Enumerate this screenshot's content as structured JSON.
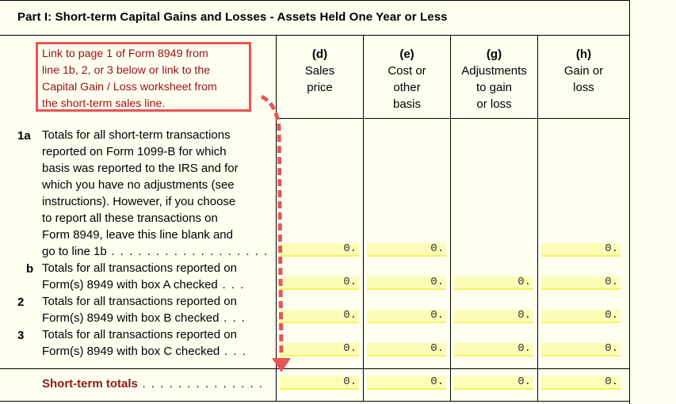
{
  "part": {
    "title": "Part I:  Short-term Capital Gains and Losses - Assets Held One Year or Less"
  },
  "callout": {
    "lines": [
      "Link to page 1 of Form 8949 from",
      "line 1b,  2,  or 3 below or link to the",
      "Capital Gain / Loss worksheet from",
      "the short-term sales line."
    ],
    "text_color": "#9b0f0f",
    "border_color": "#e85454"
  },
  "columns": [
    {
      "letter": "(d)",
      "line1": "Sales",
      "line2": "price",
      "line3": ""
    },
    {
      "letter": "(e)",
      "line1": "Cost or",
      "line2": "other",
      "line3": "basis"
    },
    {
      "letter": "(g)",
      "line1": "Adjustments",
      "line2": "to gain",
      "line3": "or loss"
    },
    {
      "letter": "(h)",
      "line1": "Gain or",
      "line2": "loss",
      "line3": ""
    }
  ],
  "rows": {
    "r1a": {
      "num": "1a",
      "lines": [
        "Totals for all short-term transactions",
        "reported on Form 1099-B for which",
        "basis was reported to the IRS and for",
        "which you have no adjustments  (see",
        "instructions).  However,  if you choose",
        "to report all these transactions on",
        "Form 8949,  leave this line blank and"
      ],
      "last_line": "go to line 1b",
      "leader": " . . . . . . . . . . . . . . . . . .",
      "d": "0.",
      "e": "0.",
      "h": "0."
    },
    "r1b": {
      "num": "b",
      "line1": "Totals for all transactions reported on",
      "line2": "Form(s)  8949 with box A checked",
      "leader": "  . . .",
      "d": "0.",
      "e": "0.",
      "g": "0.",
      "h": "0."
    },
    "r2": {
      "num": "2",
      "line1": "Totals for all transactions reported on",
      "line2": "Form(s)  8949 with box B checked",
      "leader": "  . . .",
      "d": "0.",
      "e": "0.",
      "g": "0.",
      "h": "0."
    },
    "r3": {
      "num": "3",
      "line1": "Totals for all transactions reported on",
      "line2": "Form(s)  8949 with box C checked",
      "leader": "  . . .",
      "d": "0.",
      "e": "0.",
      "g": "0.",
      "h": "0."
    },
    "totals": {
      "label": "Short-term totals",
      "leader": " . . . . . . . . . . . . . .",
      "d": "0.",
      "e": "0.",
      "g": "0.",
      "h": "0."
    }
  },
  "colors": {
    "background": "#fffff0",
    "field_fill": "#fdfdb8",
    "field_underline": "#f4f45c",
    "arrow": "#e85454",
    "totals_label": "#8b1a1a"
  }
}
